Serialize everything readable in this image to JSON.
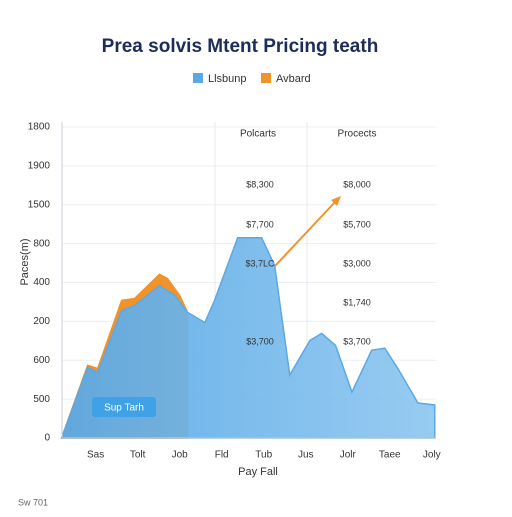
{
  "chart_data": {
    "type": "area",
    "title": "Prea solvis Mtent Pricing teath",
    "y_label": "Paces(m)",
    "x_label": "Pay Fall",
    "xlim": [
      0.2,
      9.1
    ],
    "xticks": [
      {
        "value": 1,
        "label": "Sas"
      },
      {
        "value": 2,
        "label": "Tolt"
      },
      {
        "value": 3,
        "label": "Job"
      },
      {
        "value": 4,
        "label": "Fld"
      },
      {
        "value": 5,
        "label": "Tub"
      },
      {
        "value": 6,
        "label": "Jus"
      },
      {
        "value": 7,
        "label": "Jolr"
      },
      {
        "value": 8,
        "label": "Taee"
      },
      {
        "value": 9,
        "label": "Joly"
      }
    ],
    "ylim": [
      0,
      8
    ],
    "yticks": [
      0,
      {
        "value": 1,
        "label": "500"
      },
      {
        "value": 2,
        "label": "600"
      },
      {
        "value": 3,
        "label": "200"
      },
      {
        "value": 4,
        "label": "400"
      },
      {
        "value": 5,
        "label": "800"
      },
      {
        "value": 6,
        "label": "1500"
      },
      {
        "value": 7,
        "label": "1900"
      },
      {
        "value": 8,
        "label": "1800"
      }
    ],
    "grid": true,
    "series": [
      {
        "name": "Llsbunp",
        "color": "#5aa9e6",
        "x": [
          0.19,
          0.81,
          1.05,
          1.62,
          1.93,
          2.52,
          2.88,
          3.19,
          3.6,
          3.83,
          4.38,
          4.95,
          5.26,
          5.62,
          6.1,
          6.38,
          6.71,
          7.1,
          7.57,
          7.88,
          8.19,
          8.67,
          9.07
        ],
        "values": [
          0,
          1.82,
          1.69,
          3.28,
          3.41,
          3.92,
          3.67,
          3.23,
          2.97,
          3.54,
          5.15,
          5.15,
          4.44,
          1.62,
          2.51,
          2.69,
          2.38,
          1.18,
          2.26,
          2.31,
          1.79,
          0.9,
          0.85
        ]
      },
      {
        "name": "Avbard",
        "color": "#f0932b",
        "x": [
          0.19,
          0.81,
          1.05,
          1.62,
          1.93,
          2.52,
          2.71,
          3.0,
          3.19
        ],
        "values": [
          0,
          1.87,
          1.79,
          3.54,
          3.59,
          4.21,
          4.1,
          3.67,
          3.23
        ]
      }
    ],
    "panel_labels": [
      "Polcarts",
      "Procects"
    ],
    "annotations_left": [
      "$8,300",
      "$7,700",
      "$3,7LC",
      "$3,700"
    ],
    "annotations_right": [
      "$8,000",
      "$5,700",
      "$3,000",
      "$1,740",
      "$3,700"
    ],
    "badge": "Sup Tarh",
    "footer": "Sw 701"
  }
}
